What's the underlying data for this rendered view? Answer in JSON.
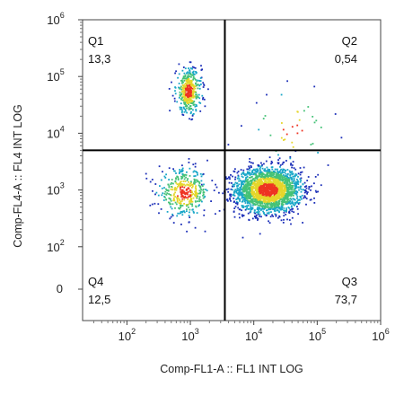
{
  "chart_data": {
    "type": "scatter",
    "subtype": "flow-cytometry-density",
    "xlabel": "Comp-FL1-A :: FL1 INT LOG",
    "ylabel": "Comp-FL4-A :: FL4 INT LOG",
    "x_scale": "log",
    "y_scale": "log",
    "xlim": [
      20,
      1000000
    ],
    "ylim": [
      5,
      1000000
    ],
    "x_ticks": [
      {
        "base": "10",
        "exp": "2"
      },
      {
        "base": "10",
        "exp": "3"
      },
      {
        "base": "10",
        "exp": "4"
      },
      {
        "base": "10",
        "exp": "5"
      },
      {
        "base": "10",
        "exp": "6"
      }
    ],
    "y_ticks": [
      {
        "base": "",
        "exp": "",
        "text": "0"
      },
      {
        "base": "10",
        "exp": "2"
      },
      {
        "base": "10",
        "exp": "3"
      },
      {
        "base": "10",
        "exp": "4"
      },
      {
        "base": "10",
        "exp": "5"
      },
      {
        "base": "10",
        "exp": "6"
      }
    ],
    "gate": {
      "x": 3500,
      "y": 5000
    },
    "quadrants": [
      {
        "name": "Q1",
        "value": "13,3",
        "position": "top-left"
      },
      {
        "name": "Q2",
        "value": "0,54",
        "position": "top-right"
      },
      {
        "name": "Q3",
        "value": "73,7",
        "position": "bottom-right"
      },
      {
        "name": "Q4",
        "value": "12,5",
        "position": "bottom-left"
      }
    ],
    "populations": [
      {
        "quadrant": "Q3",
        "center": [
          17000,
          1000
        ],
        "spread_log": [
          0.26,
          0.2
        ],
        "share": 0.737
      },
      {
        "quadrant": "Q1",
        "center": [
          950,
          55000
        ],
        "spread_log": [
          0.1,
          0.2
        ],
        "share": 0.133
      },
      {
        "quadrant": "Q4",
        "center": [
          800,
          900
        ],
        "spread_log": [
          0.2,
          0.2
        ],
        "share": 0.125
      },
      {
        "quadrant": "Q2",
        "center": [
          40000,
          12000
        ],
        "spread_log": [
          0.3,
          0.3
        ],
        "share": 0.0054
      }
    ],
    "colors": {
      "low": "#1c2fb8",
      "mid_low": "#1aa7c8",
      "mid": "#45c277",
      "mid_high": "#e5d62b",
      "high": "#ee3322",
      "gate_line": "#000000",
      "frame": "#444444"
    },
    "grid": false
  }
}
